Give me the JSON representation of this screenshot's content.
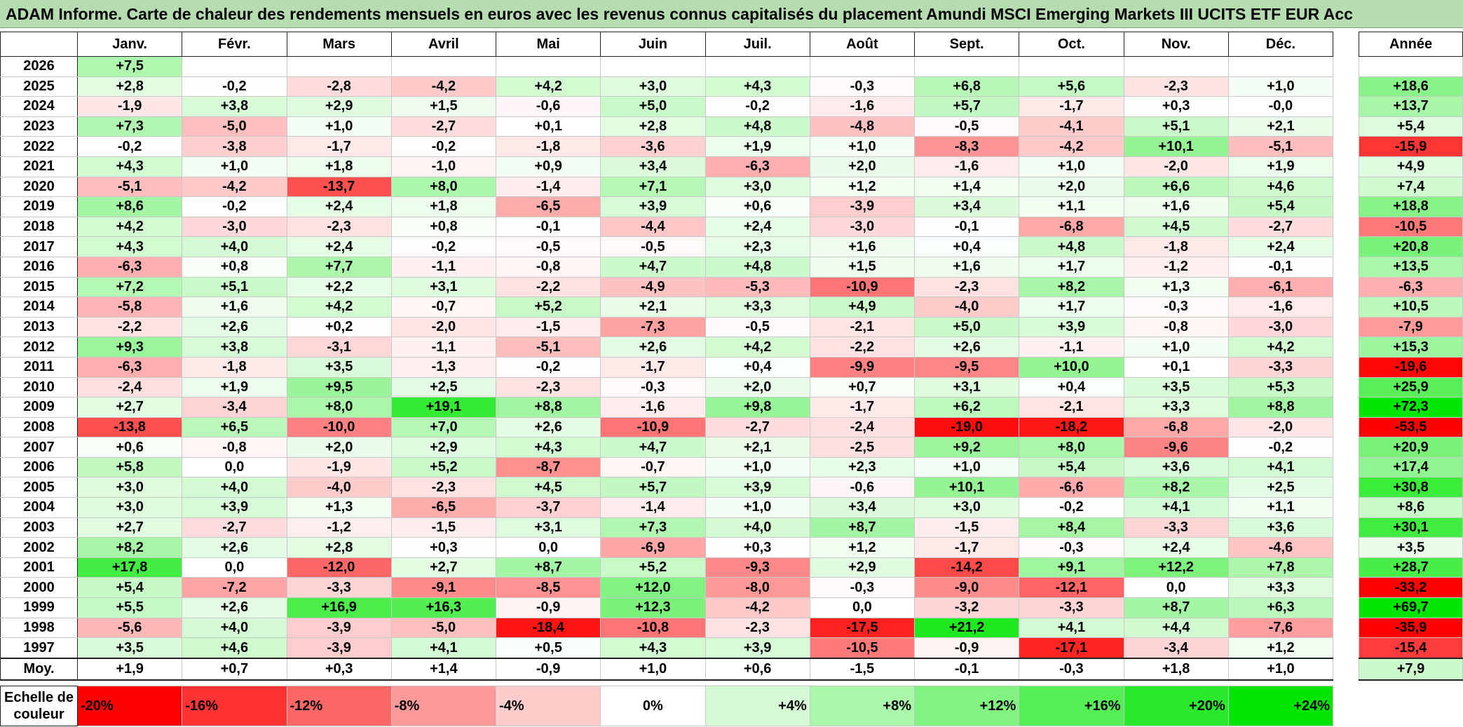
{
  "title": "ADAM Informe. Carte de chaleur des rendements mensuels en euros avec les revenus connus capitalisés du placement Amundi MSCI Emerging Markets III UCITS ETF EUR Acc",
  "chart_data": {
    "type": "heatmap",
    "title": "ADAM Informe. Carte de chaleur des rendements mensuels en euros avec les revenus connus capitalisés du placement Amundi MSCI Emerging Markets III UCITS ETF EUR Acc",
    "months": [
      "Janv.",
      "Févr.",
      "Mars",
      "Avril",
      "Mai",
      "Juin",
      "Juil.",
      "Août",
      "Sept.",
      "Oct.",
      "Nov.",
      "Déc."
    ],
    "annual_label": "Année",
    "average_label": "Moy.",
    "rows": [
      {
        "year": "2026",
        "months": [
          "+7,5",
          "",
          "",
          "",
          "",
          "",
          "",
          "",
          "",
          "",
          "",
          ""
        ],
        "annual": ""
      },
      {
        "year": "2025",
        "months": [
          "+2,8",
          "-0,2",
          "-2,8",
          "-4,2",
          "+4,2",
          "+3,0",
          "+4,3",
          "-0,3",
          "+6,8",
          "+5,6",
          "-2,3",
          "+1,0"
        ],
        "annual": "+18,6"
      },
      {
        "year": "2024",
        "months": [
          "-1,9",
          "+3,8",
          "+2,9",
          "+1,5",
          "-0,6",
          "+5,0",
          "-0,2",
          "-1,6",
          "+5,7",
          "-1,7",
          "+0,3",
          "-0,0"
        ],
        "annual": "+13,7"
      },
      {
        "year": "2023",
        "months": [
          "+7,3",
          "-5,0",
          "+1,0",
          "-2,7",
          "+0,1",
          "+2,8",
          "+4,8",
          "-4,8",
          "-0,5",
          "-4,1",
          "+5,1",
          "+2,1"
        ],
        "annual": "+5,4"
      },
      {
        "year": "2022",
        "months": [
          "-0,2",
          "-3,8",
          "-1,7",
          "-0,2",
          "-1,8",
          "-3,6",
          "+1,9",
          "+1,0",
          "-8,3",
          "-4,2",
          "+10,1",
          "-5,1"
        ],
        "annual": "-15,9"
      },
      {
        "year": "2021",
        "months": [
          "+4,3",
          "+1,0",
          "+1,8",
          "-1,0",
          "+0,9",
          "+3,4",
          "-6,3",
          "+2,0",
          "-1,6",
          "+1,0",
          "-2,0",
          "+1,9"
        ],
        "annual": "+4,9"
      },
      {
        "year": "2020",
        "months": [
          "-5,1",
          "-4,2",
          "-13,7",
          "+8,0",
          "-1,4",
          "+7,1",
          "+3,0",
          "+1,2",
          "+1,4",
          "+2,0",
          "+6,6",
          "+4,6"
        ],
        "annual": "+7,4"
      },
      {
        "year": "2019",
        "months": [
          "+8,6",
          "-0,2",
          "+2,4",
          "+1,8",
          "-6,5",
          "+3,9",
          "+0,6",
          "-3,9",
          "+3,4",
          "+1,1",
          "+1,6",
          "+5,4"
        ],
        "annual": "+18,8"
      },
      {
        "year": "2018",
        "months": [
          "+4,2",
          "-3,0",
          "-2,3",
          "+0,8",
          "-0,1",
          "-4,4",
          "+2,4",
          "-3,0",
          "-0,1",
          "-6,8",
          "+4,5",
          "-2,7"
        ],
        "annual": "-10,5"
      },
      {
        "year": "2017",
        "months": [
          "+4,3",
          "+4,0",
          "+2,4",
          "-0,2",
          "-0,5",
          "-0,5",
          "+2,3",
          "+1,6",
          "+0,4",
          "+4,8",
          "-1,8",
          "+2,4"
        ],
        "annual": "+20,8"
      },
      {
        "year": "2016",
        "months": [
          "-6,3",
          "+0,8",
          "+7,7",
          "-1,1",
          "-0,8",
          "+4,7",
          "+4,8",
          "+1,5",
          "+1,6",
          "+1,7",
          "-1,2",
          "-0,1"
        ],
        "annual": "+13,5"
      },
      {
        "year": "2015",
        "months": [
          "+7,2",
          "+5,1",
          "+2,2",
          "+3,1",
          "-2,2",
          "-4,9",
          "-5,3",
          "-10,9",
          "-2,3",
          "+8,2",
          "+1,3",
          "-6,1"
        ],
        "annual": "-6,3"
      },
      {
        "year": "2014",
        "months": [
          "-5,8",
          "+1,6",
          "+4,2",
          "-0,7",
          "+5,2",
          "+2,1",
          "+3,3",
          "+4,9",
          "-4,0",
          "+1,7",
          "-0,3",
          "-1,6"
        ],
        "annual": "+10,5"
      },
      {
        "year": "2013",
        "months": [
          "-2,2",
          "+2,6",
          "+0,2",
          "-2,0",
          "-1,5",
          "-7,3",
          "-0,5",
          "-2,1",
          "+5,0",
          "+3,9",
          "-0,8",
          "-3,0"
        ],
        "annual": "-7,9"
      },
      {
        "year": "2012",
        "months": [
          "+9,3",
          "+3,8",
          "-3,1",
          "-1,1",
          "-5,1",
          "+2,6",
          "+4,2",
          "-2,2",
          "+2,6",
          "-1,1",
          "+1,0",
          "+4,2"
        ],
        "annual": "+15,3"
      },
      {
        "year": "2011",
        "months": [
          "-6,3",
          "-1,8",
          "+3,5",
          "-1,3",
          "-0,2",
          "-1,7",
          "+0,4",
          "-9,9",
          "-9,5",
          "+10,0",
          "+0,1",
          "-3,3"
        ],
        "annual": "-19,6"
      },
      {
        "year": "2010",
        "months": [
          "-2,4",
          "+1,9",
          "+9,5",
          "+2,5",
          "-2,3",
          "-0,3",
          "+2,0",
          "+0,7",
          "+3,1",
          "+0,4",
          "+3,5",
          "+5,3"
        ],
        "annual": "+25,9"
      },
      {
        "year": "2009",
        "months": [
          "+2,7",
          "-3,4",
          "+8,0",
          "+19,1",
          "+8,8",
          "-1,6",
          "+9,8",
          "-1,7",
          "+6,2",
          "-2,1",
          "+3,3",
          "+8,8"
        ],
        "annual": "+72,3"
      },
      {
        "year": "2008",
        "months": [
          "-13,8",
          "+6,5",
          "-10,0",
          "+7,0",
          "+2,6",
          "-10,9",
          "-2,7",
          "-2,4",
          "-19,0",
          "-18,2",
          "-6,8",
          "-2,0"
        ],
        "annual": "-53,5"
      },
      {
        "year": "2007",
        "months": [
          "+0,6",
          "-0,8",
          "+2,0",
          "+2,9",
          "+4,3",
          "+4,7",
          "+2,1",
          "-2,5",
          "+9,2",
          "+8,0",
          "-9,6",
          "-0,2"
        ],
        "annual": "+20,9"
      },
      {
        "year": "2006",
        "months": [
          "+5,8",
          "0,0",
          "-1,9",
          "+5,2",
          "-8,7",
          "-0,7",
          "+1,0",
          "+2,3",
          "+1,0",
          "+5,4",
          "+3,6",
          "+4,1"
        ],
        "annual": "+17,4"
      },
      {
        "year": "2005",
        "months": [
          "+3,0",
          "+4,0",
          "-4,0",
          "-2,3",
          "+4,5",
          "+5,7",
          "+3,9",
          "-0,6",
          "+10,1",
          "-6,6",
          "+8,2",
          "+2,5"
        ],
        "annual": "+30,8"
      },
      {
        "year": "2004",
        "months": [
          "+3,0",
          "+3,9",
          "+1,3",
          "-6,5",
          "-3,7",
          "-1,4",
          "+1,0",
          "+3,4",
          "+3,0",
          "-0,2",
          "+4,1",
          "+1,1"
        ],
        "annual": "+8,6"
      },
      {
        "year": "2003",
        "months": [
          "+2,7",
          "-2,7",
          "-1,2",
          "-1,5",
          "+3,1",
          "+7,3",
          "+4,0",
          "+8,7",
          "-1,5",
          "+8,4",
          "-3,3",
          "+3,6"
        ],
        "annual": "+30,1"
      },
      {
        "year": "2002",
        "months": [
          "+8,2",
          "+2,6",
          "+2,8",
          "+0,3",
          "0,0",
          "-6,9",
          "+0,3",
          "+1,2",
          "-1,7",
          "-0,3",
          "+2,4",
          "-4,6"
        ],
        "annual": "+3,5"
      },
      {
        "year": "2001",
        "months": [
          "+17,8",
          "0,0",
          "-12,0",
          "+2,7",
          "+8,7",
          "+5,2",
          "-9,3",
          "+2,9",
          "-14,2",
          "+9,1",
          "+12,2",
          "+7,8"
        ],
        "annual": "+28,7"
      },
      {
        "year": "2000",
        "months": [
          "+5,4",
          "-7,2",
          "-3,3",
          "-9,1",
          "-8,5",
          "+12,0",
          "-8,0",
          "-0,3",
          "-9,0",
          "-12,1",
          "0,0",
          "+3,3"
        ],
        "annual": "-33,2"
      },
      {
        "year": "1999",
        "months": [
          "+5,5",
          "+2,6",
          "+16,9",
          "+16,3",
          "-0,9",
          "+12,3",
          "-4,2",
          "0,0",
          "-3,2",
          "-3,3",
          "+8,7",
          "+6,3"
        ],
        "annual": "+69,7"
      },
      {
        "year": "1998",
        "months": [
          "-5,6",
          "+4,0",
          "-3,9",
          "-5,0",
          "-18,4",
          "-10,8",
          "-2,3",
          "-17,5",
          "+21,2",
          "+4,1",
          "+4,4",
          "-7,6"
        ],
        "annual": "-35,9"
      },
      {
        "year": "1997",
        "months": [
          "+3,5",
          "+4,6",
          "-3,9",
          "+4,1",
          "+0,5",
          "+4,3",
          "+3,9",
          "-10,5",
          "-0,9",
          "-17,1",
          "-3,4",
          "+1,2"
        ],
        "annual": "-15,4"
      }
    ],
    "averages": {
      "months": [
        "+1,9",
        "+0,7",
        "+0,3",
        "+1,4",
        "-0,9",
        "+1,0",
        "+0,6",
        "-1,5",
        "-0,1",
        "-0,3",
        "+1,8",
        "+1,0"
      ],
      "annual": "+7,9"
    },
    "scale": {
      "label": "Echelle de couleur",
      "stops": [
        "-20%",
        "-16%",
        "-12%",
        "-8%",
        "-4%",
        "0%",
        "+4%",
        "+8%",
        "+12%",
        "+16%",
        "+20%",
        "+24%"
      ]
    },
    "colors": {
      "negative_max": "#ff0000",
      "neutral": "#ffffff",
      "positive_max": "#00e600",
      "title_bg": "#b5ddb0"
    }
  }
}
